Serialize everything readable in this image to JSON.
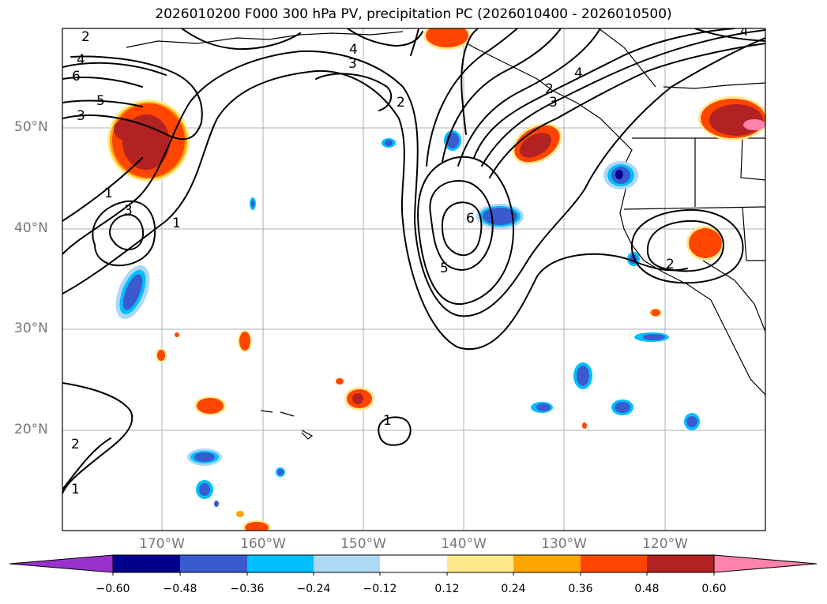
{
  "title": "2026010200 F000 300 hPa PV, precipitation PC (2026010400 - 2026010500)",
  "lat_labels": [
    "50°N",
    "40°N",
    "30°N",
    "20°N"
  ],
  "lon_labels": [
    "170°W",
    "160°W",
    "150°W",
    "140°W",
    "130°W",
    "120°W"
  ],
  "contour_labels": [
    "2",
    "4",
    "6",
    "5",
    "3",
    "1",
    "3",
    "1",
    "4",
    "3",
    "2",
    "4",
    "2",
    "3",
    "6",
    "5",
    "2",
    "1",
    "2",
    "1",
    "4"
  ],
  "colorbar": {
    "ticks": [
      "−0.60",
      "−0.48",
      "−0.36",
      "−0.24",
      "−0.12",
      "0.12",
      "0.24",
      "0.36",
      "0.48",
      "0.60"
    ],
    "colors": [
      "#9932cc",
      "#00008b",
      "#3a5bd0",
      "#00bfff",
      "#add8f6",
      "#ffffff",
      "#ffe88c",
      "#ffa500",
      "#ff4500",
      "#b22222",
      "#ff82ab"
    ]
  },
  "fill_colors": {
    "neg_light": "#add8f6",
    "neg_mid": "#00bfff",
    "neg_strong": "#3a5bd0",
    "neg_max": "#00008b",
    "pos_light": "#ffe88c",
    "pos_mid": "#ffa500",
    "pos_strong": "#ff4500",
    "pos_max": "#b22222",
    "pos_top": "#ff82ab"
  }
}
